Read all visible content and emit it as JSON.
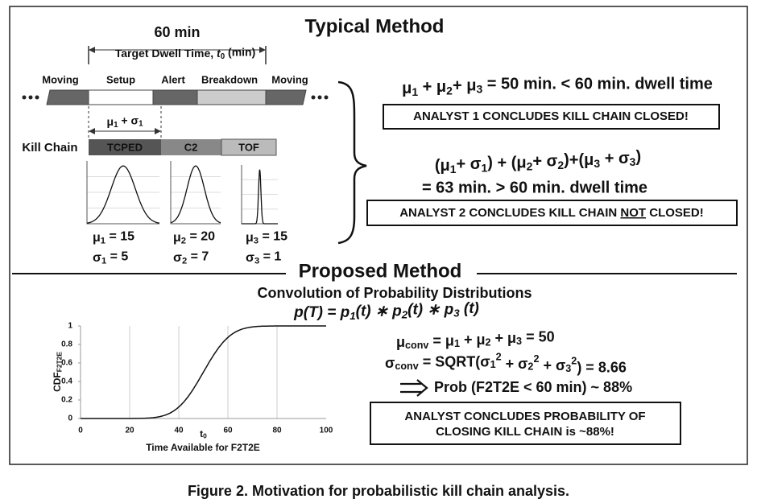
{
  "typical": {
    "title": "Typical Method",
    "duration": "60 min",
    "dwell_label": [
      "Target Dwell Time, ",
      {
        "i": "t"
      },
      {
        "sub": "0"
      },
      " (min)"
    ],
    "phases": [
      "Moving",
      "Setup",
      "Alert",
      "Breakdown",
      "Moving"
    ],
    "span_label": [
      "μ",
      {
        "sub": "1"
      },
      " + σ",
      {
        "sub": "1"
      }
    ],
    "kill_chain_label": "Kill Chain",
    "stages": [
      "TCPED",
      "C2",
      "TOF"
    ],
    "distributions": [
      {
        "mu_label": [
          "μ",
          {
            "sub": "1"
          },
          " = "
        ],
        "mu": 15,
        "sigma_label": [
          "σ",
          {
            "sub": "1"
          },
          " = "
        ],
        "sigma": 5
      },
      {
        "mu_label": [
          "μ",
          {
            "sub": "2"
          },
          " = "
        ],
        "mu": 20,
        "sigma_label": [
          "σ",
          {
            "sub": "2"
          },
          " = "
        ],
        "sigma": 7
      },
      {
        "mu_label": [
          "μ",
          {
            "sub": "3"
          },
          " = "
        ],
        "mu": 15,
        "sigma_label": [
          "σ",
          {
            "sub": "3"
          },
          " = "
        ],
        "sigma": 1
      }
    ],
    "sum_line": [
      "μ",
      {
        "sub": "1"
      },
      " + μ",
      {
        "sub": "2"
      },
      "+ μ",
      {
        "sub": "3"
      },
      " = 50 min. < 60 min. dwell time"
    ],
    "analyst1": "ANALYST 1 CONCLUDES KILL CHAIN CLOSED!",
    "sum_sigma_line": [
      "(μ",
      {
        "sub": "1"
      },
      "+ σ",
      {
        "sub": "1"
      },
      ") + (μ",
      {
        "sub": "2"
      },
      "+ σ",
      {
        "sub": "2"
      },
      ")+(μ",
      {
        "sub": "3"
      },
      " + σ",
      {
        "sub": "3"
      },
      ")"
    ],
    "total_line": "= 63 min. > 60 min. dwell time",
    "analyst2": [
      "ANALYST 2 CONCLUDES KILL CHAIN ",
      {
        "u": "NOT"
      },
      " CLOSED!"
    ]
  },
  "proposed": {
    "title": "Proposed Method",
    "subtitle": "Convolution of Probability Distributions",
    "formula": [
      "p(T) = p",
      {
        "sub": "1"
      },
      "(t) ∗ p",
      {
        "sub": "2"
      },
      "(t) ∗ p",
      {
        "sub": "3"
      },
      " (t)"
    ],
    "chart": {
      "type": "line",
      "y_label": [
        "CDF",
        {
          "sub": "F2T2E"
        }
      ],
      "x_label": "Time Available for F2T2E",
      "marker_label": [
        "t",
        {
          "sub": "0"
        }
      ],
      "xlim": [
        0,
        100
      ],
      "xticks": [
        0,
        20,
        40,
        60,
        80,
        100
      ],
      "ylim": [
        0,
        1
      ],
      "yticks": [
        0,
        0.2,
        0.4,
        0.6,
        0.8,
        1
      ]
    },
    "mu_conv_label": [
      "μ",
      {
        "sub": "conv"
      },
      " = μ",
      {
        "sub": "1"
      },
      " + μ",
      {
        "sub": "2"
      },
      " + μ",
      {
        "sub": "3"
      },
      " = "
    ],
    "mu_conv": 50,
    "sigma_conv_label": [
      "σ",
      {
        "sub": "conv"
      },
      " = SQRT(σ",
      {
        "sub": "1"
      },
      {
        "sup": "2"
      },
      " + σ",
      {
        "sub": "2"
      },
      {
        "sup": "2"
      },
      " + σ",
      {
        "sub": "3"
      },
      {
        "sup": "2"
      },
      ") = "
    ],
    "sigma_conv": 8.66,
    "prob_line": "Prob (F2T2E < 60 min) ~ 88%",
    "conclusion": [
      "ANALYST CONCLUDES PROBABILITY OF",
      "CLOSING KILL CHAIN is ~88%!"
    ]
  },
  "caption": [
    {
      "b": "Figure 2."
    },
    " Motivation for probabilistic kill chain analysis."
  ]
}
